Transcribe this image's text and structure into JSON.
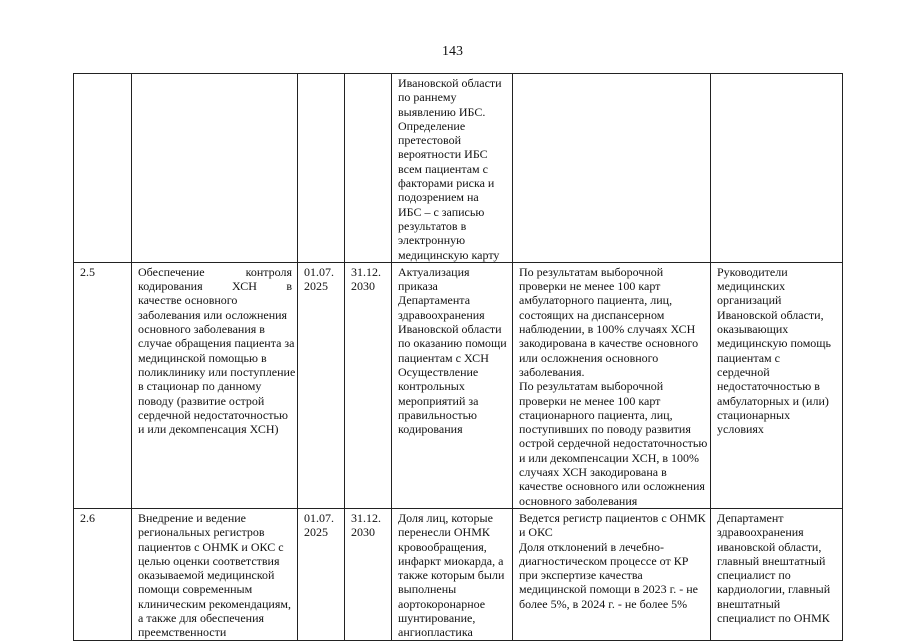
{
  "page_number": "143",
  "rows": [
    {
      "num": [],
      "task": [],
      "start": [],
      "end": [],
      "action": [
        "Ивановской области",
        "по раннему",
        "выявлению ИБС.",
        "Определение",
        "претестовой",
        "вероятности ИБС",
        "всем пациентам с",
        "факторами риска и",
        "подозрением на",
        "ИБС – с записью",
        "результатов в",
        "электронную",
        "медицинскую карту"
      ],
      "result": [],
      "responsible": []
    },
    {
      "num": [
        "2.5"
      ],
      "task": [
        "Обеспечение контроля",
        "кодирования ХСН в",
        "качестве основного",
        "заболевания или осложнения",
        "основного заболевания в",
        "случае обращения пациента за",
        "медицинской помощью в",
        "поликлинику или поступление",
        "в стационар по данному",
        "поводу (развитие острой",
        "сердечной недостаточностью",
        "и или декомпенсация ХСН)"
      ],
      "start": [
        "01.07.",
        "2025"
      ],
      "end": [
        "31.12.",
        "2030"
      ],
      "action": [
        "Актуализация",
        "приказа",
        "Департамента",
        "здравоохранения",
        "Ивановской области",
        "по оказанию помощи",
        "пациентам с ХСН",
        "Осуществление",
        "контрольных",
        "мероприятий за",
        "правильностью",
        "кодирования"
      ],
      "result": [
        "По результатам выборочной",
        "проверки не менее 100 карт",
        "амбулаторного пациента, лиц,",
        "состоящих на диспансерном",
        "наблюдении, в 100% случаях ХСН",
        "закодирована в качестве основного",
        "или осложнения основного",
        "заболевания.",
        "По результатам выборочной",
        "проверки не менее 100 карт",
        "стационарного пациента, лиц,",
        "поступивших по поводу развития",
        "острой сердечной недостаточностью",
        "и или декомпенсации ХСН, в 100%",
        "случаях ХСН закодирована в",
        "качестве основного или осложнения",
        "основного заболевания"
      ],
      "responsible": [
        "Руководители",
        "медицинских",
        "организаций",
        "Ивановской области,",
        "оказывающих",
        "медицинскую помощь",
        "пациентам с",
        "сердечной",
        "недостаточностью в",
        "амбулаторных и (или)",
        "стационарных",
        "условиях"
      ]
    },
    {
      "num": [
        "2.6"
      ],
      "task": [
        "Внедрение и ведение",
        "региональных регистров",
        "пациентов с ОНМК и ОКС с",
        "целью оценки соответствия",
        "оказываемой медицинской",
        "помощи современным",
        "клиническим рекомендациям,",
        "а также для обеспечения",
        "преемственности"
      ],
      "start": [
        "01.07.",
        "2025"
      ],
      "end": [
        "31.12.",
        "2030"
      ],
      "action": [
        "Доля лиц, которые",
        "перенесли ОНМК",
        "кровообращения,",
        "инфаркт миокарда, а",
        "также которым были",
        "выполнены",
        "аортокоронарное",
        "шунтирование,",
        "ангиопластика"
      ],
      "result": [
        "Ведется регистр пациентов с ОНМК",
        "и ОКС",
        "Доля отклонений в лечебно-",
        "диагностическом процессе от КР",
        "при экспертизе качества",
        "медицинской помощи в 2023 г. - не",
        "более 5%, в 2024 г. - не более 5%"
      ],
      "responsible": [
        "Департамент",
        "здравоохранения",
        "ивановской области,",
        "главный внештатный",
        "специалист по",
        "кардиологии, главный",
        "внештатный",
        "специалист по ОНМК"
      ]
    }
  ]
}
